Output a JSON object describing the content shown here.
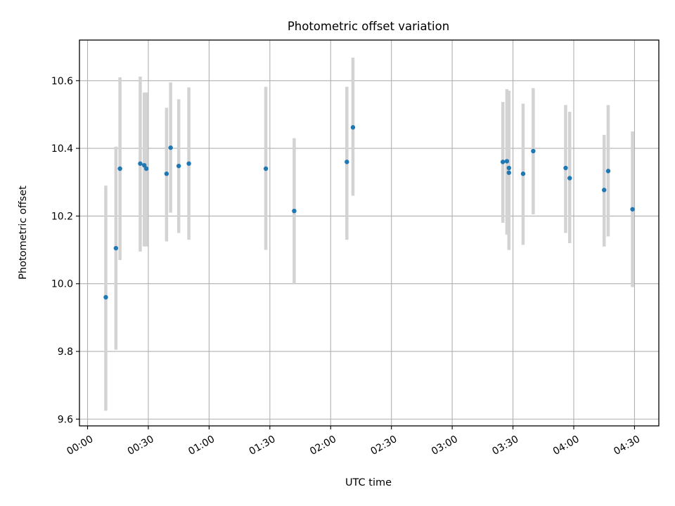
{
  "chart_data": {
    "type": "scatter",
    "title": "Photometric offset variation",
    "xlabel": "UTC time",
    "ylabel": "Photometric offset",
    "xlim": [
      "-00:04",
      "04:42"
    ],
    "ylim": [
      9.58,
      10.72
    ],
    "grid": true,
    "x_ticks": [
      "00:00",
      "00:30",
      "01:00",
      "01:30",
      "02:00",
      "02:30",
      "03:00",
      "03:30",
      "04:00",
      "04:30"
    ],
    "y_ticks": [
      "9.6",
      "9.8",
      "10.0",
      "10.2",
      "10.4",
      "10.6"
    ],
    "point_color": "#1f77b4",
    "errorbar_color": "#d3d3d3",
    "points": [
      {
        "x": "00:09",
        "y": 9.96,
        "ylow": 9.625,
        "yhigh": 10.29
      },
      {
        "x": "00:14",
        "y": 10.105,
        "ylow": 9.805,
        "yhigh": 10.405
      },
      {
        "x": "00:16",
        "y": 10.34,
        "ylow": 10.07,
        "yhigh": 10.61
      },
      {
        "x": "00:26",
        "y": 10.355,
        "ylow": 10.095,
        "yhigh": 10.612
      },
      {
        "x": "00:28",
        "y": 10.35,
        "ylow": 10.11,
        "yhigh": 10.565
      },
      {
        "x": "00:29",
        "y": 10.34,
        "ylow": 10.11,
        "yhigh": 10.565
      },
      {
        "x": "00:39",
        "y": 10.325,
        "ylow": 10.125,
        "yhigh": 10.52
      },
      {
        "x": "00:41",
        "y": 10.402,
        "ylow": 10.21,
        "yhigh": 10.595
      },
      {
        "x": "00:45",
        "y": 10.348,
        "ylow": 10.15,
        "yhigh": 10.545
      },
      {
        "x": "00:50",
        "y": 10.355,
        "ylow": 10.13,
        "yhigh": 10.58
      },
      {
        "x": "01:28",
        "y": 10.34,
        "ylow": 10.1,
        "yhigh": 10.582
      },
      {
        "x": "01:42",
        "y": 10.215,
        "ylow": 10.0,
        "yhigh": 10.43
      },
      {
        "x": "02:08",
        "y": 10.36,
        "ylow": 10.13,
        "yhigh": 10.582
      },
      {
        "x": "02:11",
        "y": 10.462,
        "ylow": 10.26,
        "yhigh": 10.668
      },
      {
        "x": "03:25",
        "y": 10.36,
        "ylow": 10.18,
        "yhigh": 10.537
      },
      {
        "x": "03:27",
        "y": 10.362,
        "ylow": 10.145,
        "yhigh": 10.575
      },
      {
        "x": "03:28",
        "y": 10.342,
        "ylow": 10.1,
        "yhigh": 10.57
      },
      {
        "x": "03:28",
        "y": 10.328,
        "ylow": 10.1,
        "yhigh": 10.57
      },
      {
        "x": "03:35",
        "y": 10.325,
        "ylow": 10.115,
        "yhigh": 10.532
      },
      {
        "x": "03:40",
        "y": 10.392,
        "ylow": 10.205,
        "yhigh": 10.578
      },
      {
        "x": "03:56",
        "y": 10.342,
        "ylow": 10.15,
        "yhigh": 10.528
      },
      {
        "x": "03:58",
        "y": 10.312,
        "ylow": 10.12,
        "yhigh": 10.508
      },
      {
        "x": "04:15",
        "y": 10.277,
        "ylow": 10.11,
        "yhigh": 10.44
      },
      {
        "x": "04:17",
        "y": 10.333,
        "ylow": 10.14,
        "yhigh": 10.528
      },
      {
        "x": "04:29",
        "y": 10.22,
        "ylow": 9.99,
        "yhigh": 10.45
      }
    ]
  }
}
